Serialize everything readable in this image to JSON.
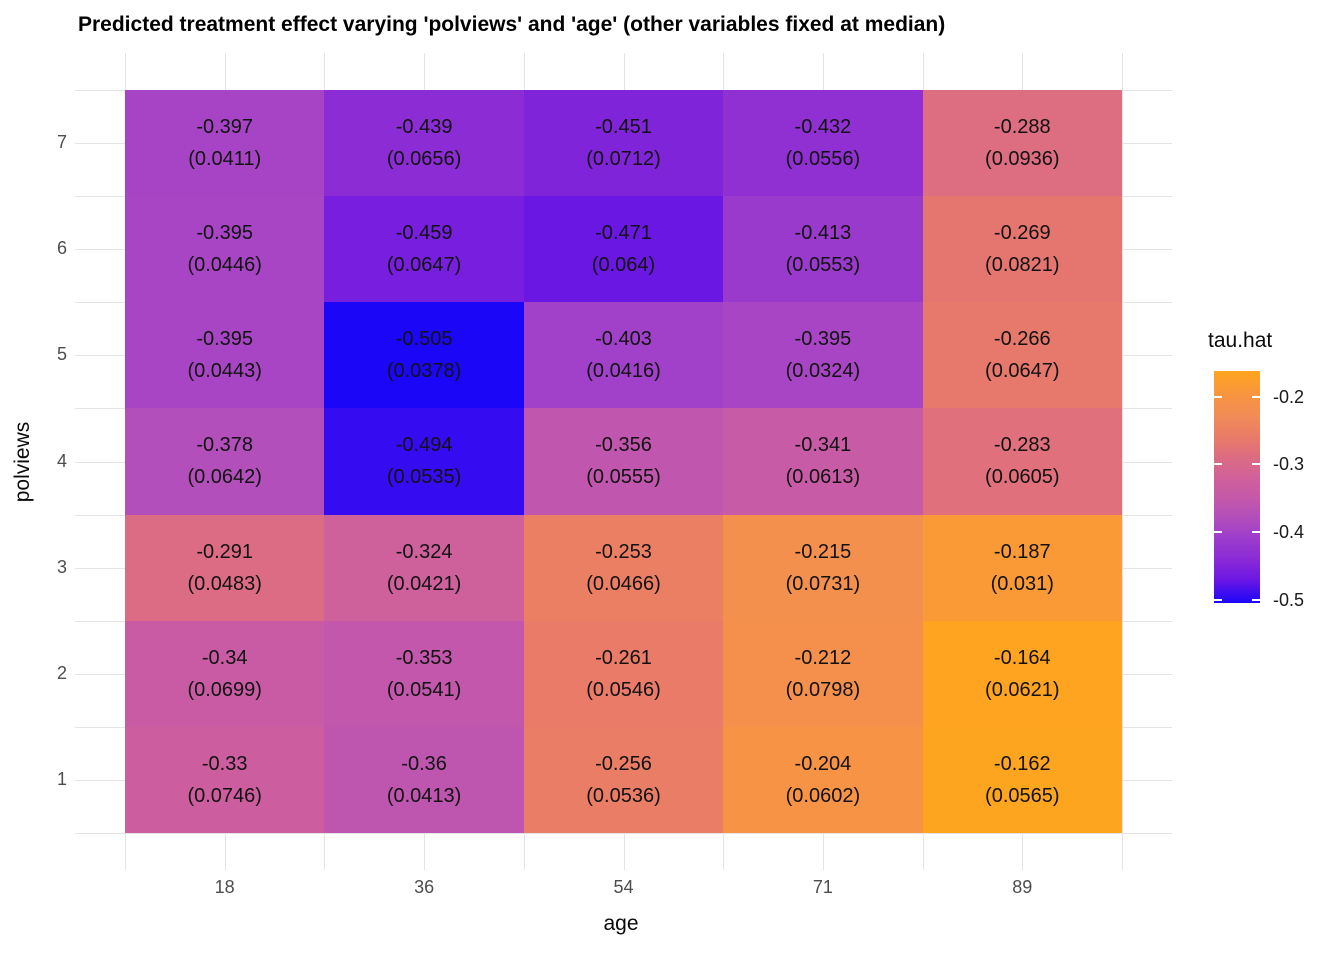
{
  "title": "Predicted treatment effect varying 'polviews' and 'age' (other variables fixed at median)",
  "chart_data": {
    "type": "heatmap",
    "title": "Predicted treatment effect varying 'polviews' and 'age' (other variables fixed at median)",
    "xlabel": "age",
    "ylabel": "polviews",
    "x_tick_labels": [
      "18",
      "36",
      "54",
      "71",
      "89"
    ],
    "y_tick_labels_top_to_bottom": [
      "7",
      "6",
      "5",
      "4",
      "3",
      "2",
      "1"
    ],
    "grid": "light-gray major and minor gridlines on white panel",
    "legend": {
      "title": "tau.hat",
      "position": "right",
      "min": -0.505,
      "max": -0.162,
      "tick_values": [
        -0.2,
        -0.3,
        -0.4,
        -0.5
      ],
      "tick_labels": [
        "-0.2",
        "-0.3",
        "-0.4",
        "-0.5"
      ]
    },
    "gradient_stops": [
      {
        "value": -0.505,
        "color": "#1B06F8"
      },
      {
        "value": -0.47,
        "color": "#6D17E3"
      },
      {
        "value": -0.44,
        "color": "#8B2BD5"
      },
      {
        "value": -0.41,
        "color": "#9C3CCC"
      },
      {
        "value": -0.38,
        "color": "#B24EBC"
      },
      {
        "value": -0.35,
        "color": "#C458A9"
      },
      {
        "value": -0.32,
        "color": "#D0619A"
      },
      {
        "value": -0.29,
        "color": "#DC6C82"
      },
      {
        "value": -0.26,
        "color": "#E97B67"
      },
      {
        "value": -0.23,
        "color": "#F08B58"
      },
      {
        "value": -0.2,
        "color": "#F79442"
      },
      {
        "value": -0.162,
        "color": "#FEA51F"
      }
    ],
    "rows": [
      {
        "polviews": 7,
        "cells": [
          {
            "age": 18,
            "tau": -0.397,
            "se": 0.0411,
            "value_label": "-0.397",
            "se_label": "(0.0411)"
          },
          {
            "age": 36,
            "tau": -0.439,
            "se": 0.0656,
            "value_label": "-0.439",
            "se_label": "(0.0656)"
          },
          {
            "age": 54,
            "tau": -0.451,
            "se": 0.0712,
            "value_label": "-0.451",
            "se_label": "(0.0712)"
          },
          {
            "age": 71,
            "tau": -0.432,
            "se": 0.0556,
            "value_label": "-0.432",
            "se_label": "(0.0556)"
          },
          {
            "age": 89,
            "tau": -0.288,
            "se": 0.0936,
            "value_label": "-0.288",
            "se_label": "(0.0936)"
          }
        ]
      },
      {
        "polviews": 6,
        "cells": [
          {
            "age": 18,
            "tau": -0.395,
            "se": 0.0446,
            "value_label": "-0.395",
            "se_label": "(0.0446)"
          },
          {
            "age": 36,
            "tau": -0.459,
            "se": 0.0647,
            "value_label": "-0.459",
            "se_label": "(0.0647)"
          },
          {
            "age": 54,
            "tau": -0.471,
            "se": 0.064,
            "value_label": "-0.471",
            "se_label": "(0.064)"
          },
          {
            "age": 71,
            "tau": -0.413,
            "se": 0.0553,
            "value_label": "-0.413",
            "se_label": "(0.0553)"
          },
          {
            "age": 89,
            "tau": -0.269,
            "se": 0.0821,
            "value_label": "-0.269",
            "se_label": "(0.0821)"
          }
        ]
      },
      {
        "polviews": 5,
        "cells": [
          {
            "age": 18,
            "tau": -0.395,
            "se": 0.0443,
            "value_label": "-0.395",
            "se_label": "(0.0443)"
          },
          {
            "age": 36,
            "tau": -0.505,
            "se": 0.0378,
            "value_label": "-0.505",
            "se_label": "(0.0378)"
          },
          {
            "age": 54,
            "tau": -0.403,
            "se": 0.0416,
            "value_label": "-0.403",
            "se_label": "(0.0416)"
          },
          {
            "age": 71,
            "tau": -0.395,
            "se": 0.0324,
            "value_label": "-0.395",
            "se_label": "(0.0324)"
          },
          {
            "age": 89,
            "tau": -0.266,
            "se": 0.0647,
            "value_label": "-0.266",
            "se_label": "(0.0647)"
          }
        ]
      },
      {
        "polviews": 4,
        "cells": [
          {
            "age": 18,
            "tau": -0.378,
            "se": 0.0642,
            "value_label": "-0.378",
            "se_label": "(0.0642)"
          },
          {
            "age": 36,
            "tau": -0.494,
            "se": 0.0535,
            "value_label": "-0.494",
            "se_label": "(0.0535)"
          },
          {
            "age": 54,
            "tau": -0.356,
            "se": 0.0555,
            "value_label": "-0.356",
            "se_label": "(0.0555)"
          },
          {
            "age": 71,
            "tau": -0.341,
            "se": 0.0613,
            "value_label": "-0.341",
            "se_label": "(0.0613)"
          },
          {
            "age": 89,
            "tau": -0.283,
            "se": 0.0605,
            "value_label": "-0.283",
            "se_label": "(0.0605)"
          }
        ]
      },
      {
        "polviews": 3,
        "cells": [
          {
            "age": 18,
            "tau": -0.291,
            "se": 0.0483,
            "value_label": "-0.291",
            "se_label": "(0.0483)"
          },
          {
            "age": 36,
            "tau": -0.324,
            "se": 0.0421,
            "value_label": "-0.324",
            "se_label": "(0.0421)"
          },
          {
            "age": 54,
            "tau": -0.253,
            "se": 0.0466,
            "value_label": "-0.253",
            "se_label": "(0.0466)"
          },
          {
            "age": 71,
            "tau": -0.215,
            "se": 0.0731,
            "value_label": "-0.215",
            "se_label": "(0.0731)"
          },
          {
            "age": 89,
            "tau": -0.187,
            "se": 0.031,
            "value_label": "-0.187",
            "se_label": "(0.031)"
          }
        ]
      },
      {
        "polviews": 2,
        "cells": [
          {
            "age": 18,
            "tau": -0.34,
            "se": 0.0699,
            "value_label": "-0.34",
            "se_label": "(0.0699)"
          },
          {
            "age": 36,
            "tau": -0.353,
            "se": 0.0541,
            "value_label": "-0.353",
            "se_label": "(0.0541)"
          },
          {
            "age": 54,
            "tau": -0.261,
            "se": 0.0546,
            "value_label": "-0.261",
            "se_label": "(0.0546)"
          },
          {
            "age": 71,
            "tau": -0.212,
            "se": 0.0798,
            "value_label": "-0.212",
            "se_label": "(0.0798)"
          },
          {
            "age": 89,
            "tau": -0.164,
            "se": 0.0621,
            "value_label": "-0.164",
            "se_label": "(0.0621)"
          }
        ]
      },
      {
        "polviews": 1,
        "cells": [
          {
            "age": 18,
            "tau": -0.33,
            "se": 0.0746,
            "value_label": "-0.33",
            "se_label": "(0.0746)"
          },
          {
            "age": 36,
            "tau": -0.36,
            "se": 0.0413,
            "value_label": "-0.36",
            "se_label": "(0.0413)"
          },
          {
            "age": 54,
            "tau": -0.256,
            "se": 0.0536,
            "value_label": "-0.256",
            "se_label": "(0.0536)"
          },
          {
            "age": 71,
            "tau": -0.204,
            "se": 0.0602,
            "value_label": "-0.204",
            "se_label": "(0.0602)"
          },
          {
            "age": 89,
            "tau": -0.162,
            "se": 0.0565,
            "value_label": "-0.162",
            "se_label": "(0.0565)"
          }
        ]
      }
    ]
  }
}
